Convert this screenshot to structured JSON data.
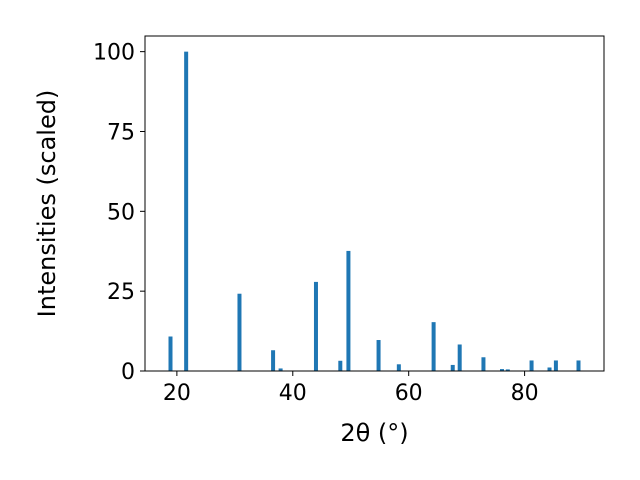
{
  "chart_data": {
    "type": "bar",
    "xlabel": "2θ (°)",
    "ylabel": "Intensities (scaled)",
    "xlim": [
      14.5,
      93.7
    ],
    "ylim": [
      0,
      104.9
    ],
    "xticks": [
      20,
      40,
      60,
      80
    ],
    "yticks": [
      0,
      25,
      50,
      75,
      100
    ],
    "grid": false,
    "legend": "none",
    "bar_color": "#1f77b4",
    "bars": [
      {
        "x": 18.9,
        "y": 10.8
      },
      {
        "x": 21.6,
        "y": 100
      },
      {
        "x": 30.8,
        "y": 24.2
      },
      {
        "x": 36.6,
        "y": 6.5
      },
      {
        "x": 37.9,
        "y": 0.8
      },
      {
        "x": 44.0,
        "y": 27.9
      },
      {
        "x": 48.2,
        "y": 3.2
      },
      {
        "x": 49.6,
        "y": 37.6
      },
      {
        "x": 54.8,
        "y": 9.7
      },
      {
        "x": 58.3,
        "y": 2.1
      },
      {
        "x": 64.3,
        "y": 15.3
      },
      {
        "x": 67.6,
        "y": 1.9
      },
      {
        "x": 68.8,
        "y": 8.3
      },
      {
        "x": 72.9,
        "y": 4.3
      },
      {
        "x": 76.1,
        "y": 0.6
      },
      {
        "x": 77.1,
        "y": 0.5
      },
      {
        "x": 81.2,
        "y": 3.3
      },
      {
        "x": 84.3,
        "y": 1.1
      },
      {
        "x": 85.4,
        "y": 3.3
      },
      {
        "x": 89.3,
        "y": 3.3
      }
    ]
  }
}
